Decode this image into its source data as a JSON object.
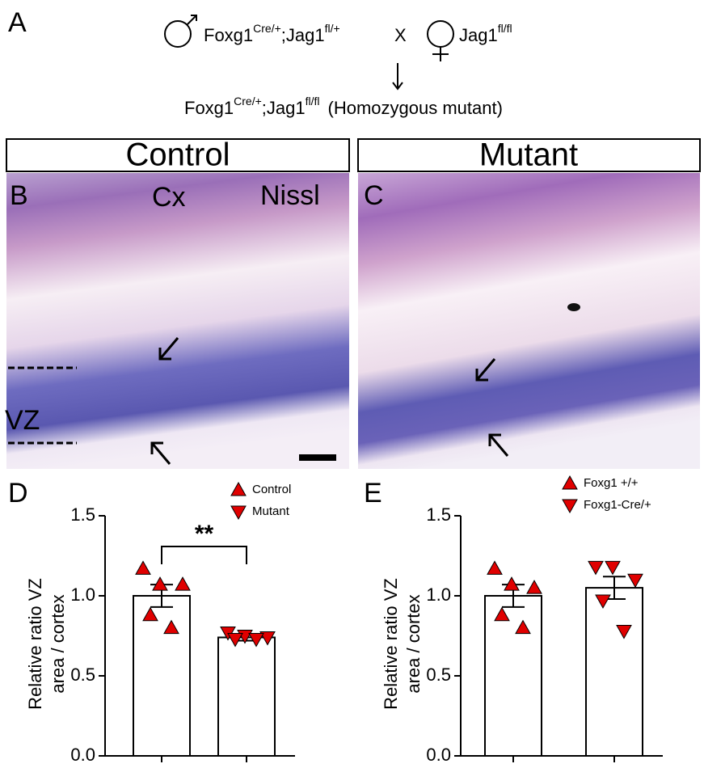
{
  "panel_a": {
    "label": "A",
    "male": [
      "Foxg1",
      "Cre/+",
      ";Jag1",
      "fl/+"
    ],
    "cross": "X",
    "female": [
      "Jag1",
      "fl/fl"
    ],
    "offspring": [
      "Foxg1",
      "Cre/+",
      ";Jag1",
      "fl/fl",
      "(Homozygous mutant)"
    ]
  },
  "images": {
    "control_header": "Control",
    "mutant_header": "Mutant",
    "panel_b": "B",
    "panel_c": "C",
    "region": "Cx",
    "stain": "Nissl",
    "zone": "VZ"
  },
  "chart_data": [
    {
      "type": "bar",
      "panel": "D",
      "ylabel": [
        "Relative ratio VZ",
        "area / cortex"
      ],
      "categories": [
        null,
        null
      ],
      "ylim": [
        0,
        1.5
      ],
      "yticks": [
        {
          "value": 0,
          "label": "0.0"
        },
        {
          "value": 0.5,
          "label": "0.5"
        },
        {
          "value": 1,
          "label": "1.0"
        },
        {
          "value": 1.5,
          "label": "1.5"
        }
      ],
      "significance": "**",
      "series": [
        {
          "name": "Control",
          "color": "#e00000",
          "marker": "triangle-up",
          "mean": 1.0,
          "sem": 0.07,
          "points": [
            1.17,
            1.07,
            1.07,
            0.88,
            0.8
          ]
        },
        {
          "name": "Mutant",
          "color": "#e00000",
          "marker": "triangle-down",
          "mean": 0.74,
          "sem": 0.02,
          "points": [
            0.77,
            0.75,
            0.74,
            0.73,
            0.73
          ]
        }
      ]
    },
    {
      "type": "bar",
      "panel": "E",
      "ylabel": [
        "Relative ratio VZ",
        "area / cortex"
      ],
      "categories": [
        null,
        null
      ],
      "ylim": [
        0,
        1.5
      ],
      "yticks": [
        {
          "value": 0,
          "label": "0.0"
        },
        {
          "value": 0.5,
          "label": "0.5"
        },
        {
          "value": 1,
          "label": "1.0"
        },
        {
          "value": 1.5,
          "label": "1.5"
        }
      ],
      "series": [
        {
          "name": "Foxg1 +/+",
          "color": "#e00000",
          "marker": "triangle-up",
          "mean": 1.0,
          "sem": 0.07,
          "points": [
            1.17,
            1.07,
            1.05,
            0.88,
            0.8
          ]
        },
        {
          "name": "Foxg1-Cre/+",
          "color": "#e00000",
          "marker": "triangle-down",
          "mean": 1.05,
          "sem": 0.07,
          "points": [
            1.18,
            1.18,
            1.1,
            0.97,
            0.78
          ]
        }
      ]
    }
  ]
}
